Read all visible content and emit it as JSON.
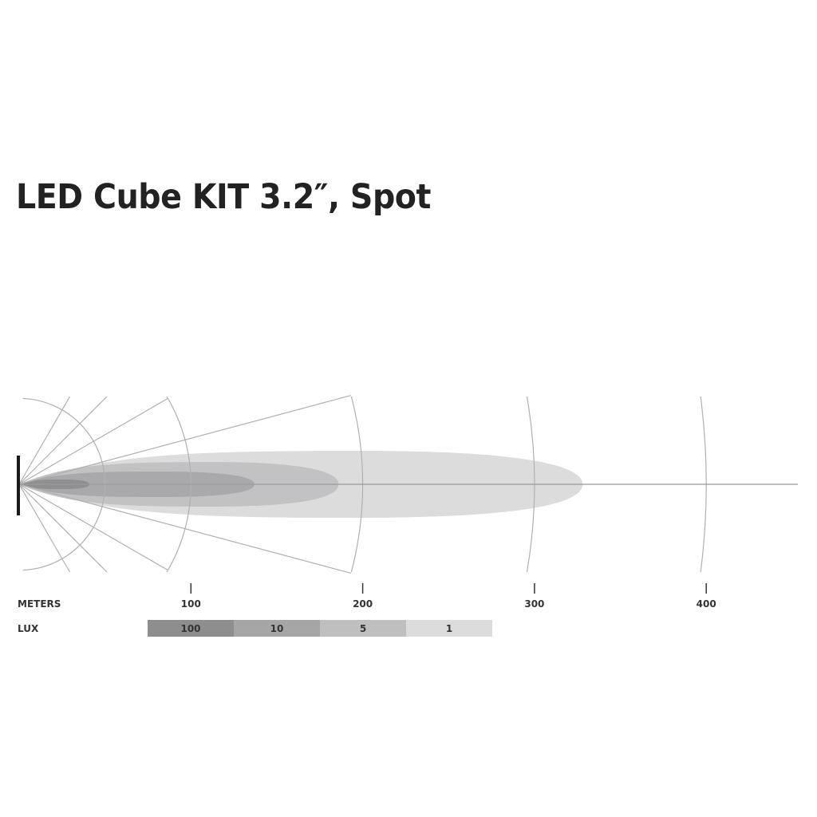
{
  "chart_data": {
    "type": "beam-pattern",
    "title": "LED Cube KIT 3.2″, Spot",
    "x_axis_label": "METERS",
    "x_ticks": [
      100,
      200,
      300,
      400
    ],
    "x_range_m": [
      0,
      450
    ],
    "legend_label": "LUX",
    "zones": [
      {
        "lux": "1",
        "reach_m": 328,
        "color": "#dcdcdc"
      },
      {
        "lux": "5",
        "reach_m": 186,
        "color": "#c2c2c4"
      },
      {
        "lux": "10",
        "reach_m": 137,
        "color": "#a9a9ab"
      },
      {
        "lux": "100",
        "reach_m": 41,
        "color": "#8f8f91"
      }
    ],
    "legend": [
      {
        "label": "100",
        "color": "#8e8e8e"
      },
      {
        "label": "10",
        "color": "#a6a6a6"
      },
      {
        "label": "5",
        "color": "#bfbfbf"
      },
      {
        "label": "1",
        "color": "#dcdcdc"
      }
    ],
    "grid_arcs_m": [
      50,
      100,
      200,
      300,
      400
    ],
    "grid_ray_angles_deg": [
      15,
      30,
      45,
      60
    ]
  }
}
